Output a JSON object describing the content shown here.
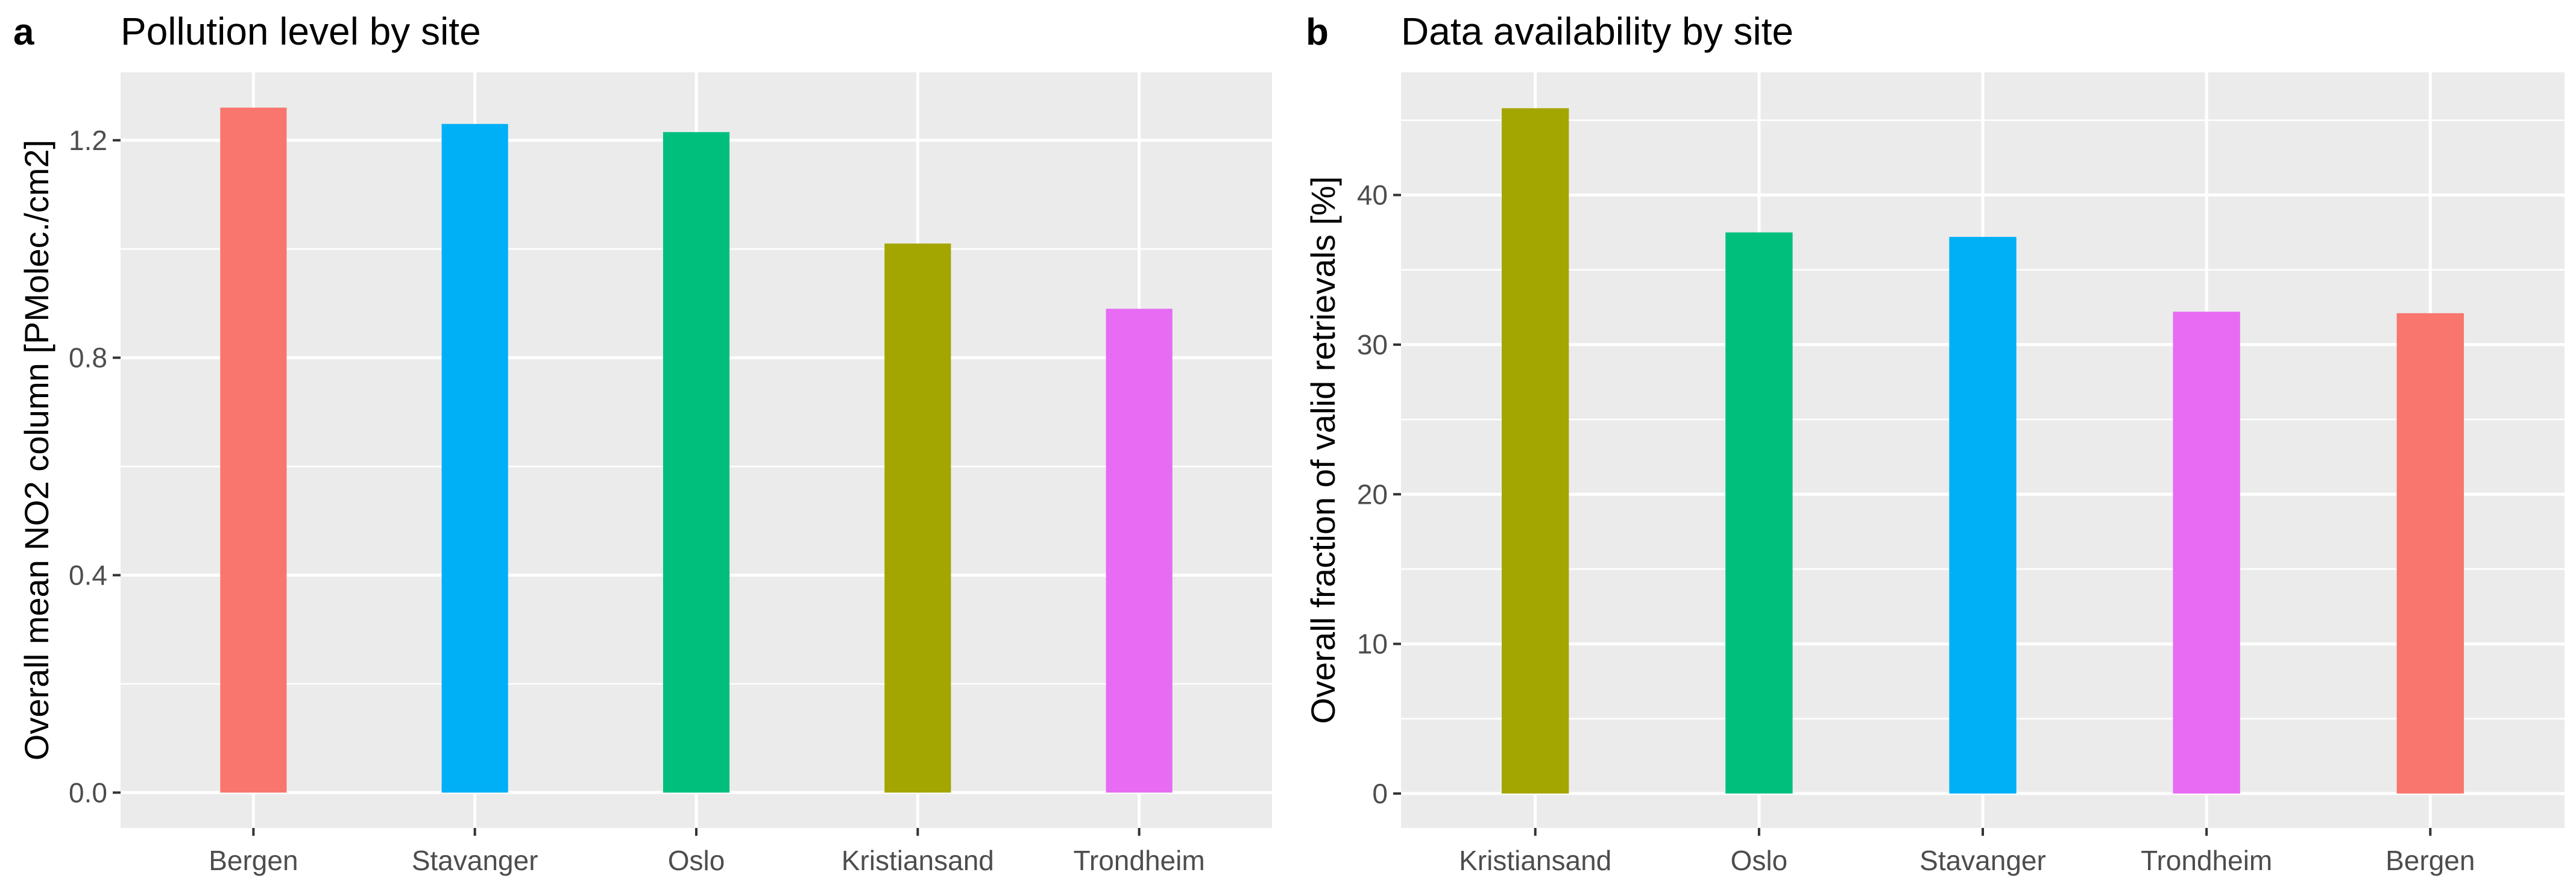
{
  "figure": {
    "background": "#ffffff",
    "panel_background": "#ebebeb",
    "grid_color": "#ffffff",
    "tick_color": "#333333"
  },
  "chart_data": [
    {
      "panel": "a",
      "type": "bar",
      "title": "Pollution level by site",
      "xlabel": "",
      "ylabel": "Overall mean NO2 column [PMolec./cm2]",
      "categories": [
        "Bergen",
        "Stavanger",
        "Oslo",
        "Kristiansand",
        "Trondheim"
      ],
      "values": [
        1.26,
        1.23,
        1.215,
        1.01,
        0.89
      ],
      "colors": [
        "#f8766d",
        "#00b0f6",
        "#00bf7d",
        "#a3a500",
        "#e76bf3"
      ],
      "ylim": [
        -0.065,
        1.325
      ],
      "yticks": [
        0.0,
        0.4,
        0.8,
        1.2
      ],
      "ytick_labels": [
        "0.0",
        "0.4",
        "0.8",
        "1.2"
      ],
      "yminor": [
        0.2,
        0.6,
        1.0
      ],
      "grid": true,
      "legend": "none"
    },
    {
      "panel": "b",
      "type": "bar",
      "title": "Data availability by site",
      "xlabel": "",
      "ylabel": "Overall fraction of valid retrievals [%]",
      "categories": [
        "Kristiansand",
        "Oslo",
        "Stavanger",
        "Trondheim",
        "Bergen"
      ],
      "values": [
        45.8,
        37.5,
        37.2,
        32.2,
        32.1
      ],
      "colors": [
        "#a3a500",
        "#00bf7d",
        "#00b0f6",
        "#e76bf3",
        "#f8766d"
      ],
      "ylim": [
        -2.3,
        48.2
      ],
      "yticks": [
        0,
        10,
        20,
        30,
        40
      ],
      "ytick_labels": [
        "0",
        "10",
        "20",
        "30",
        "40"
      ],
      "yminor": [
        5,
        15,
        25,
        35,
        45
      ],
      "grid": true,
      "legend": "none"
    }
  ]
}
